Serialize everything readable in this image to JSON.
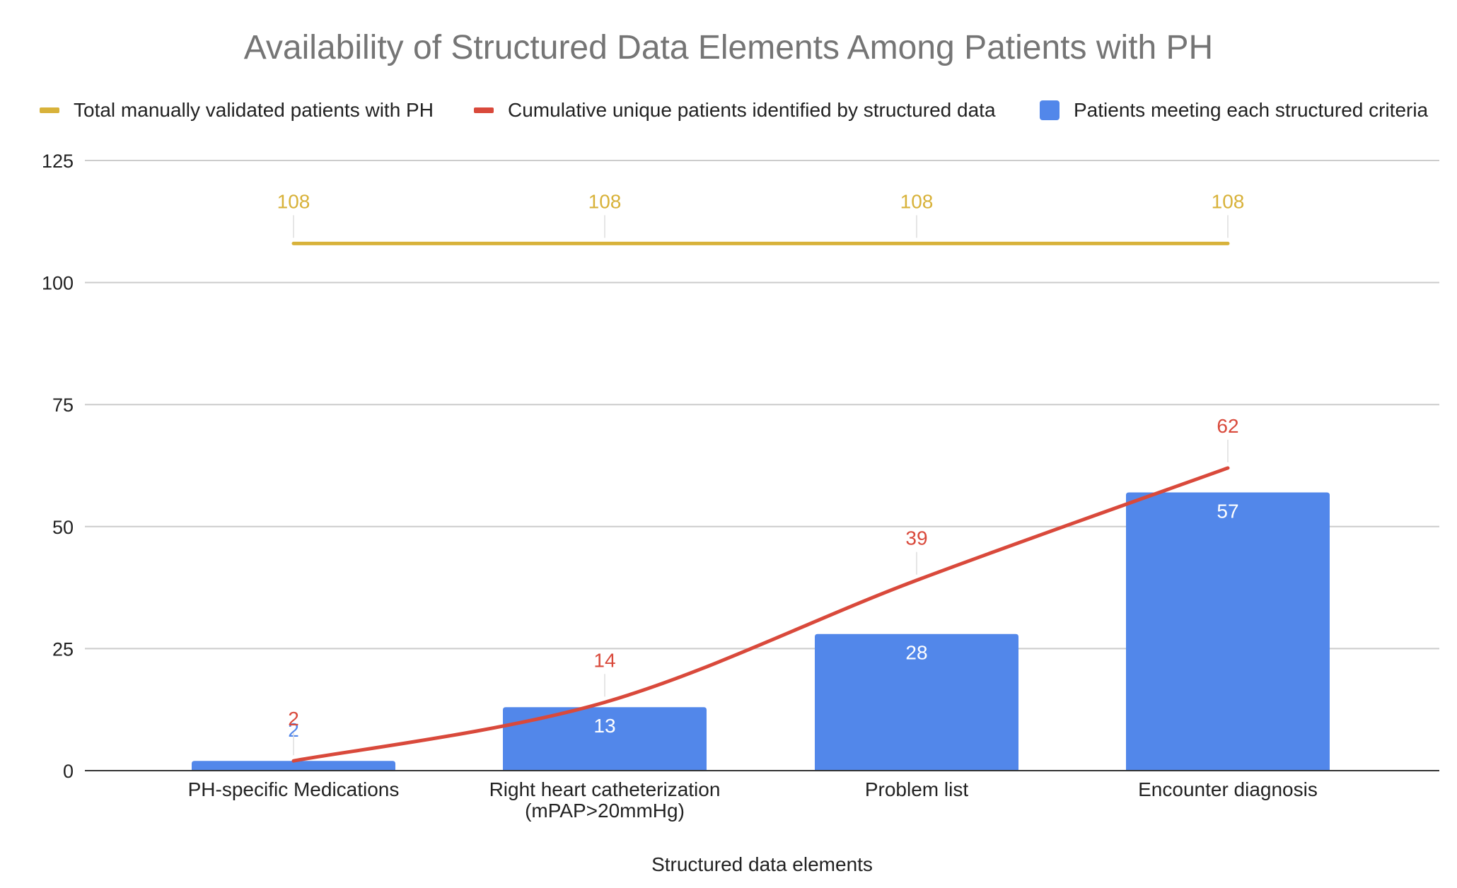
{
  "chart_data": {
    "type": "bar",
    "title": "Availability of Structured Data Elements Among Patients with PH",
    "xlabel": "Structured data elements",
    "ylabel": "",
    "ylim": [
      0,
      125
    ],
    "yticks": [
      0,
      25,
      50,
      75,
      100,
      125
    ],
    "grid": true,
    "legend_position": "top",
    "categories": [
      [
        "PH-specific Medications"
      ],
      [
        "Right heart catheterization",
        "(mPAP>20mmHg)"
      ],
      [
        "Problem list"
      ],
      [
        "Encounter diagnosis"
      ]
    ],
    "series": [
      {
        "name": "Total manually validated patients with PH",
        "type": "line",
        "color": "#D8B23A",
        "values": [
          108,
          108,
          108,
          108
        ]
      },
      {
        "name": "Cumulative unique patients identified by structured data",
        "type": "line",
        "smooth": true,
        "color": "#D9493B",
        "values": [
          2,
          14,
          39,
          62
        ]
      },
      {
        "name": "Patients meeting each structured criteria",
        "type": "bar",
        "color": "#5287EA",
        "values": [
          2,
          13,
          28,
          57
        ]
      }
    ]
  }
}
